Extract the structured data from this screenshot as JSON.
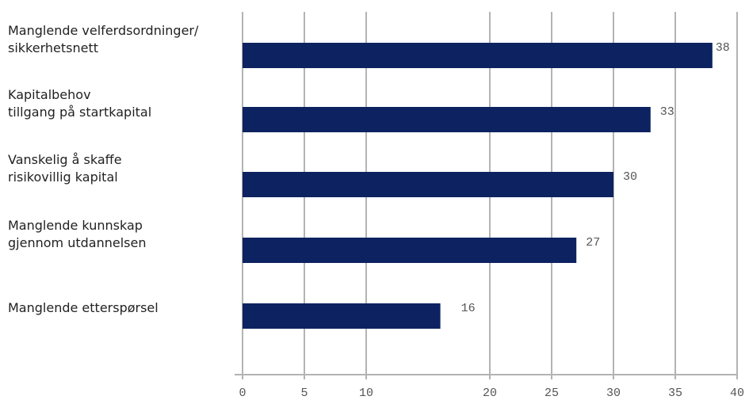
{
  "chart_data": {
    "type": "bar",
    "orientation": "horizontal",
    "categories": [
      [
        "Manglende velferdsordninger/",
        "sikkerhetsnett"
      ],
      [
        "Kapitalbehov",
        "tillgang på startkapital"
      ],
      [
        "Vanskelig å skaffe",
        "risikovillig kapital"
      ],
      [
        "Manglende kunnskap",
        "gjennom utdannelsen"
      ],
      [
        "Manglende etterspørsel"
      ]
    ],
    "values": [
      38,
      33,
      30,
      27,
      16
    ],
    "data_labels": [
      "38",
      "33",
      "30",
      "27",
      "16"
    ],
    "xlim": [
      0,
      40
    ],
    "x_ticks": [
      0,
      5,
      10,
      20,
      25,
      30,
      35,
      40
    ],
    "x_tick_labels": [
      "0",
      "5",
      "10",
      "20",
      "25",
      "30",
      "35",
      "40"
    ],
    "grid": true,
    "bar_color": "#0d2260",
    "grid_color": "#b3b3b3",
    "label_color": "#555555"
  }
}
